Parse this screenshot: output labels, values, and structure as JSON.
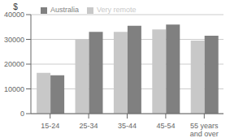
{
  "chart_data": {
    "type": "bar",
    "categories": [
      "15-24",
      "25-34",
      "35-44",
      "45-54",
      "55 years\nand over"
    ],
    "series": [
      {
        "name": "Very remote",
        "color": "#c8c8c8",
        "values": [
          16500,
          30000,
          33000,
          34000,
          29500
        ]
      },
      {
        "name": "Australia",
        "color": "#808080",
        "values": [
          15500,
          33000,
          35500,
          36000,
          31500
        ]
      }
    ],
    "ylabel": "$",
    "ylim": [
      0,
      40000
    ],
    "yticks": [
      0,
      10000,
      20000,
      30000,
      40000
    ],
    "grid": true,
    "legend": "upper left"
  }
}
